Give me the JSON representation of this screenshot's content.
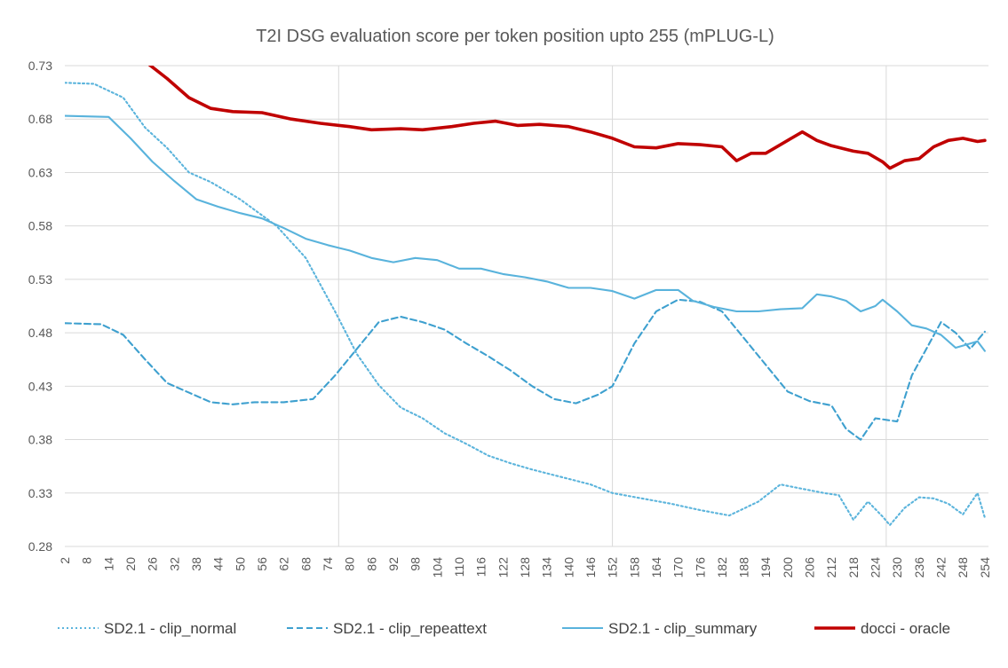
{
  "chart_data": {
    "type": "line",
    "title": "T2I DSG evaluation score per token position upto 255 (mPLUG-L)",
    "xlabel": "",
    "ylabel": "",
    "x_range": [
      2,
      255
    ],
    "ylim": [
      0.28,
      0.73
    ],
    "y_ticks": [
      "0.73",
      "0.68",
      "0.63",
      "0.58",
      "0.53",
      "0.48",
      "0.43",
      "0.38",
      "0.33",
      "0.28"
    ],
    "x_tick_labels": [
      "2",
      "8",
      "14",
      "20",
      "26",
      "32",
      "38",
      "44",
      "50",
      "56",
      "62",
      "68",
      "74",
      "80",
      "86",
      "92",
      "98",
      "104",
      "110",
      "116",
      "122",
      "128",
      "134",
      "140",
      "146",
      "152",
      "158",
      "164",
      "170",
      "176",
      "182",
      "188",
      "194",
      "200",
      "206",
      "212",
      "218",
      "224",
      "230",
      "236",
      "242",
      "248",
      "254"
    ],
    "vertical_gridlines_at": [
      77,
      152,
      227
    ],
    "legend_position": "bottom",
    "series": [
      {
        "name": "SD2.1 - clip_normal",
        "color": "#5BB4DC",
        "style": "dotted",
        "points": [
          [
            2,
            0.714
          ],
          [
            10,
            0.713
          ],
          [
            18,
            0.7
          ],
          [
            24,
            0.672
          ],
          [
            30,
            0.653
          ],
          [
            36,
            0.63
          ],
          [
            42,
            0.621
          ],
          [
            50,
            0.605
          ],
          [
            60,
            0.58
          ],
          [
            68,
            0.55
          ],
          [
            76,
            0.5
          ],
          [
            82,
            0.46
          ],
          [
            88,
            0.431
          ],
          [
            94,
            0.41
          ],
          [
            100,
            0.4
          ],
          [
            106,
            0.386
          ],
          [
            112,
            0.376
          ],
          [
            118,
            0.365
          ],
          [
            124,
            0.358
          ],
          [
            130,
            0.352
          ],
          [
            138,
            0.345
          ],
          [
            146,
            0.338
          ],
          [
            152,
            0.33
          ],
          [
            160,
            0.325
          ],
          [
            168,
            0.32
          ],
          [
            176,
            0.314
          ],
          [
            184,
            0.309
          ],
          [
            192,
            0.322
          ],
          [
            198,
            0.338
          ],
          [
            204,
            0.334
          ],
          [
            210,
            0.33
          ],
          [
            214,
            0.328
          ],
          [
            218,
            0.305
          ],
          [
            222,
            0.322
          ],
          [
            226,
            0.308
          ],
          [
            228,
            0.3
          ],
          [
            232,
            0.316
          ],
          [
            236,
            0.326
          ],
          [
            240,
            0.325
          ],
          [
            244,
            0.32
          ],
          [
            248,
            0.31
          ],
          [
            252,
            0.33
          ],
          [
            254,
            0.307
          ]
        ]
      },
      {
        "name": "SD2.1 - clip_repeattext",
        "color": "#3EA0CF",
        "style": "dashed",
        "points": [
          [
            2,
            0.489
          ],
          [
            12,
            0.488
          ],
          [
            18,
            0.478
          ],
          [
            24,
            0.455
          ],
          [
            30,
            0.433
          ],
          [
            36,
            0.424
          ],
          [
            42,
            0.415
          ],
          [
            48,
            0.413
          ],
          [
            54,
            0.415
          ],
          [
            62,
            0.415
          ],
          [
            70,
            0.418
          ],
          [
            76,
            0.44
          ],
          [
            82,
            0.465
          ],
          [
            88,
            0.49
          ],
          [
            94,
            0.495
          ],
          [
            100,
            0.49
          ],
          [
            106,
            0.483
          ],
          [
            112,
            0.47
          ],
          [
            118,
            0.458
          ],
          [
            124,
            0.445
          ],
          [
            130,
            0.43
          ],
          [
            136,
            0.418
          ],
          [
            142,
            0.414
          ],
          [
            148,
            0.422
          ],
          [
            152,
            0.43
          ],
          [
            158,
            0.47
          ],
          [
            164,
            0.5
          ],
          [
            170,
            0.511
          ],
          [
            176,
            0.509
          ],
          [
            182,
            0.5
          ],
          [
            188,
            0.475
          ],
          [
            194,
            0.45
          ],
          [
            200,
            0.425
          ],
          [
            206,
            0.416
          ],
          [
            212,
            0.412
          ],
          [
            216,
            0.39
          ],
          [
            220,
            0.38
          ],
          [
            224,
            0.4
          ],
          [
            230,
            0.397
          ],
          [
            234,
            0.44
          ],
          [
            238,
            0.465
          ],
          [
            242,
            0.49
          ],
          [
            246,
            0.48
          ],
          [
            250,
            0.465
          ],
          [
            254,
            0.481
          ]
        ]
      },
      {
        "name": "SD2.1 - clip_summary",
        "color": "#59B3DC",
        "style": "solid",
        "points": [
          [
            2,
            0.683
          ],
          [
            14,
            0.682
          ],
          [
            20,
            0.662
          ],
          [
            26,
            0.64
          ],
          [
            32,
            0.622
          ],
          [
            38,
            0.605
          ],
          [
            44,
            0.598
          ],
          [
            50,
            0.592
          ],
          [
            56,
            0.587
          ],
          [
            62,
            0.578
          ],
          [
            68,
            0.568
          ],
          [
            74,
            0.562
          ],
          [
            80,
            0.557
          ],
          [
            86,
            0.55
          ],
          [
            92,
            0.546
          ],
          [
            98,
            0.55
          ],
          [
            104,
            0.548
          ],
          [
            110,
            0.54
          ],
          [
            116,
            0.54
          ],
          [
            122,
            0.535
          ],
          [
            128,
            0.532
          ],
          [
            134,
            0.528
          ],
          [
            140,
            0.522
          ],
          [
            146,
            0.522
          ],
          [
            152,
            0.519
          ],
          [
            158,
            0.512
          ],
          [
            164,
            0.52
          ],
          [
            170,
            0.52
          ],
          [
            174,
            0.51
          ],
          [
            180,
            0.504
          ],
          [
            186,
            0.5
          ],
          [
            192,
            0.5
          ],
          [
            198,
            0.502
          ],
          [
            204,
            0.503
          ],
          [
            208,
            0.516
          ],
          [
            212,
            0.514
          ],
          [
            216,
            0.51
          ],
          [
            220,
            0.5
          ],
          [
            224,
            0.505
          ],
          [
            226,
            0.511
          ],
          [
            230,
            0.5
          ],
          [
            234,
            0.487
          ],
          [
            238,
            0.484
          ],
          [
            242,
            0.478
          ],
          [
            246,
            0.466
          ],
          [
            250,
            0.47
          ],
          [
            252,
            0.472
          ],
          [
            254,
            0.463
          ]
        ]
      },
      {
        "name": "docci - oracle",
        "color": "#C00000",
        "style": "solid-thick",
        "points": [
          [
            24,
            0.734
          ],
          [
            30,
            0.718
          ],
          [
            36,
            0.7
          ],
          [
            42,
            0.69
          ],
          [
            48,
            0.687
          ],
          [
            56,
            0.686
          ],
          [
            64,
            0.68
          ],
          [
            72,
            0.676
          ],
          [
            80,
            0.673
          ],
          [
            86,
            0.67
          ],
          [
            94,
            0.671
          ],
          [
            100,
            0.67
          ],
          [
            108,
            0.673
          ],
          [
            114,
            0.676
          ],
          [
            120,
            0.678
          ],
          [
            126,
            0.674
          ],
          [
            132,
            0.675
          ],
          [
            140,
            0.673
          ],
          [
            146,
            0.668
          ],
          [
            152,
            0.662
          ],
          [
            158,
            0.654
          ],
          [
            164,
            0.653
          ],
          [
            170,
            0.657
          ],
          [
            176,
            0.656
          ],
          [
            182,
            0.654
          ],
          [
            186,
            0.641
          ],
          [
            190,
            0.648
          ],
          [
            194,
            0.648
          ],
          [
            200,
            0.66
          ],
          [
            204,
            0.668
          ],
          [
            208,
            0.66
          ],
          [
            212,
            0.655
          ],
          [
            218,
            0.65
          ],
          [
            222,
            0.648
          ],
          [
            226,
            0.64
          ],
          [
            228,
            0.634
          ],
          [
            232,
            0.641
          ],
          [
            236,
            0.643
          ],
          [
            240,
            0.654
          ],
          [
            244,
            0.66
          ],
          [
            248,
            0.662
          ],
          [
            252,
            0.659
          ],
          [
            254,
            0.66
          ]
        ]
      }
    ]
  }
}
